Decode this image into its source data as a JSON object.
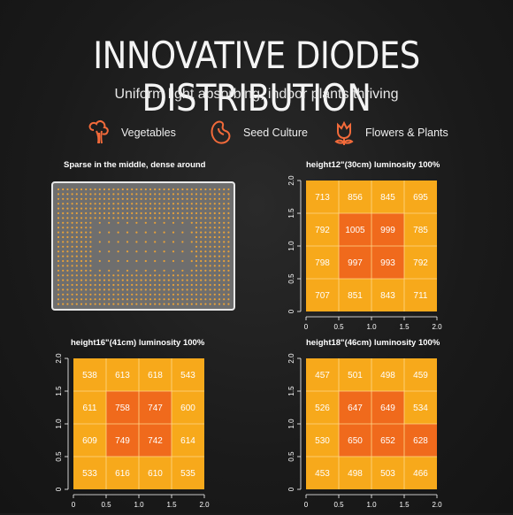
{
  "header": {
    "title": "INNOVATIVE DIODES DISTRIBUTION",
    "subtitle": "Uniform light absorbing, indoor plants thriving"
  },
  "categories": [
    {
      "label": "Vegetables",
      "icon": "vegetables-icon"
    },
    {
      "label": "Seed Culture",
      "icon": "seed-icon"
    },
    {
      "label": "Flowers & Plants",
      "icon": "flower-icon"
    }
  ],
  "diode_panel": {
    "caption": "Sparse in the middle, dense around",
    "led_color": "#e8a23a"
  },
  "colors": {
    "accent": "#f26a3a",
    "grid_light": "#f7a91b",
    "grid_dark": "#f06a1c",
    "grid_lines": "#ffd98a"
  },
  "chart_data": [
    {
      "type": "heatmap",
      "title": "height12\"(30cm)  luminosity 100%",
      "x_ticks": [
        "0",
        "0.5",
        "1.0",
        "1.5",
        "2.0"
      ],
      "y_ticks": [
        "0",
        "0.5",
        "1.0",
        "1.5",
        "2.0"
      ],
      "xlim": [
        0,
        2
      ],
      "ylim": [
        0,
        2
      ],
      "values": [
        [
          713,
          856,
          845,
          695
        ],
        [
          792,
          1005,
          999,
          785
        ],
        [
          798,
          997,
          993,
          792
        ],
        [
          707,
          851,
          843,
          711
        ]
      ]
    },
    {
      "type": "heatmap",
      "title": "height16\"(41cm)  luminosity 100%",
      "x_ticks": [
        "0",
        "0.5",
        "1.0",
        "1.5",
        "2.0"
      ],
      "y_ticks": [
        "0",
        "0.5",
        "1.0",
        "1.5",
        "2.0"
      ],
      "xlim": [
        0,
        2
      ],
      "ylim": [
        0,
        2
      ],
      "values": [
        [
          538,
          613,
          618,
          543
        ],
        [
          611,
          758,
          747,
          600
        ],
        [
          609,
          749,
          742,
          614
        ],
        [
          533,
          616,
          610,
          535
        ]
      ]
    },
    {
      "type": "heatmap",
      "title": "height18\"(46cm)  luminosity 100%",
      "x_ticks": [
        "0",
        "0.5",
        "1.0",
        "1.5",
        "2.0"
      ],
      "y_ticks": [
        "0",
        "0.5",
        "1.0",
        "1.5",
        "2.0"
      ],
      "xlim": [
        0,
        2
      ],
      "ylim": [
        0,
        2
      ],
      "values": [
        [
          457,
          501,
          498,
          459
        ],
        [
          526,
          647,
          649,
          534
        ],
        [
          530,
          650,
          652,
          628
        ],
        [
          453,
          498,
          503,
          466
        ]
      ]
    }
  ]
}
